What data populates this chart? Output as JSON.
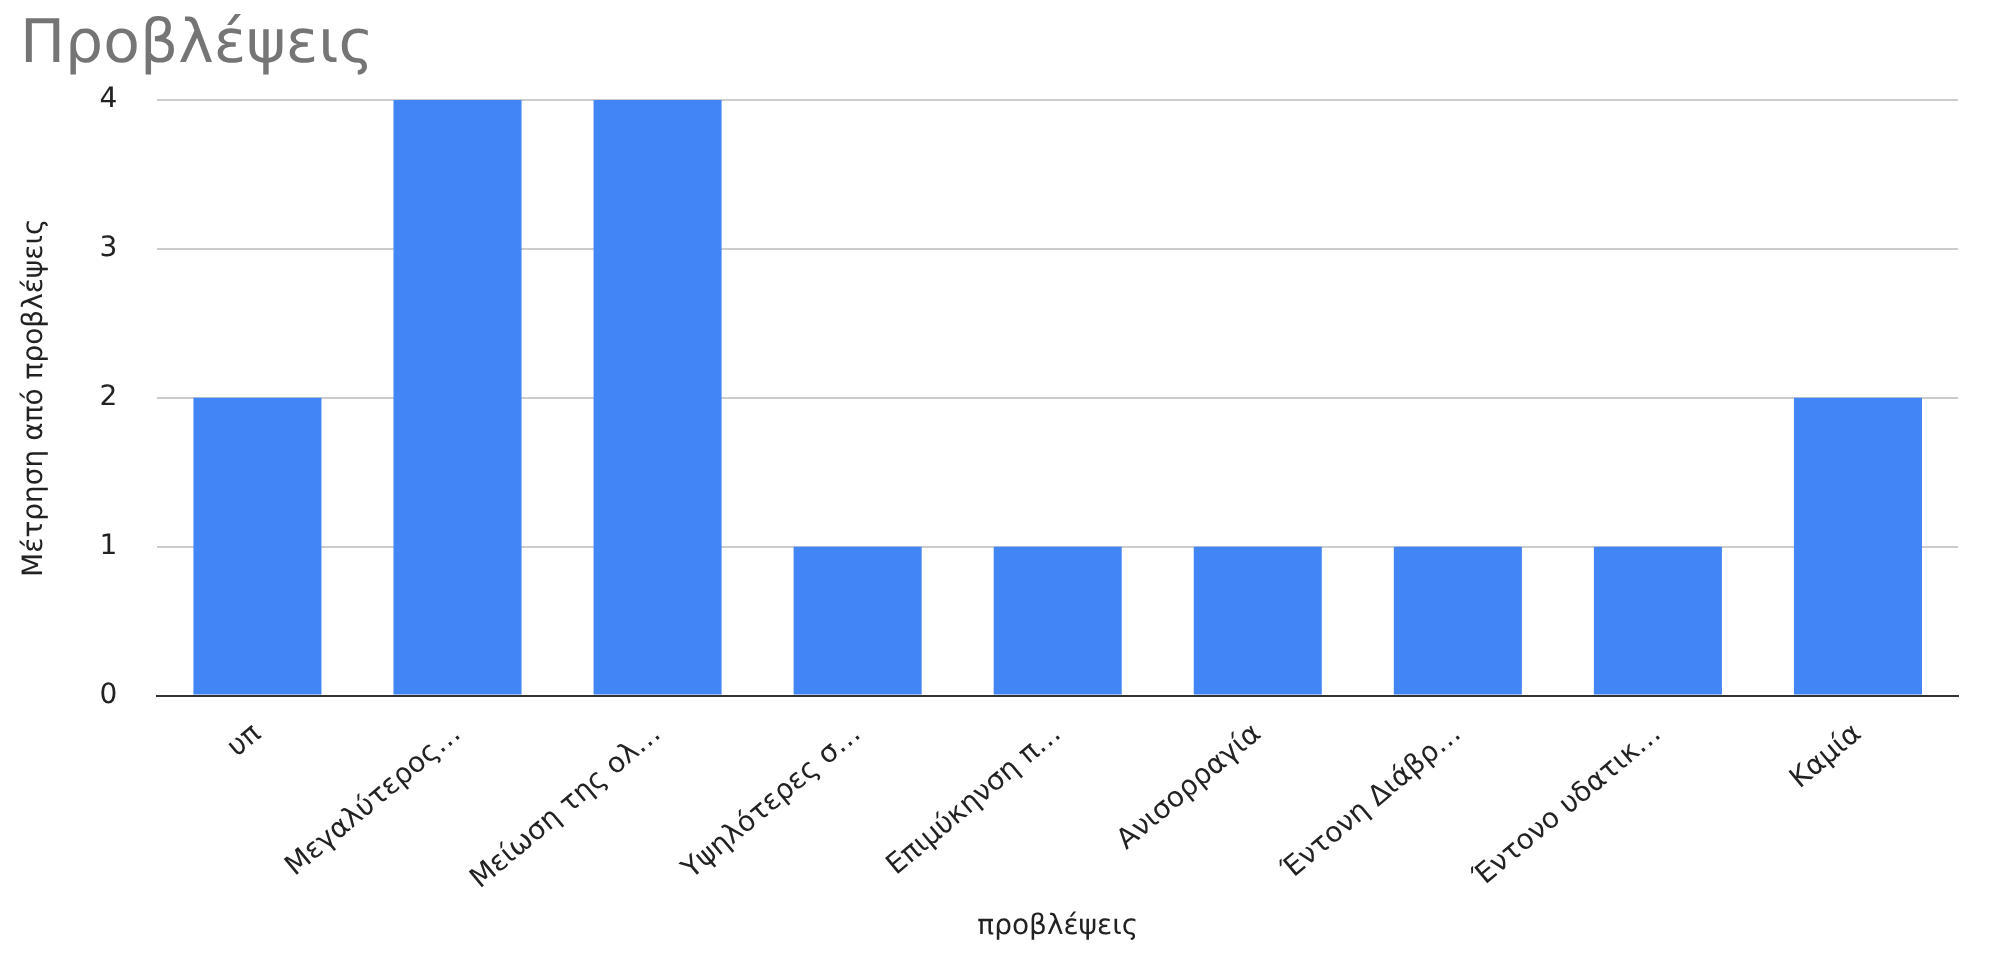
{
  "chart_data": {
    "type": "bar",
    "title": "Προβλέψεις",
    "xlabel": "προβλέψεις",
    "ylabel": "Μέτρηση από προβλέψεις",
    "categories": [
      "υπ",
      "Μεγαλύτερος…",
      "Μείωση της ολ…",
      "Υψηλότερες σ…",
      "Επιμύκηνση π…",
      "Ανισορραγία",
      "Έντονη Διάβρ…",
      "Έντονο υδατικ…",
      "Καμία"
    ],
    "values": [
      2,
      4,
      4,
      1,
      1,
      1,
      1,
      1,
      2
    ],
    "color": "#4285f4",
    "ylim": [
      0,
      4
    ],
    "yticks": [
      0,
      1,
      2,
      3,
      4
    ],
    "grid": "y"
  }
}
